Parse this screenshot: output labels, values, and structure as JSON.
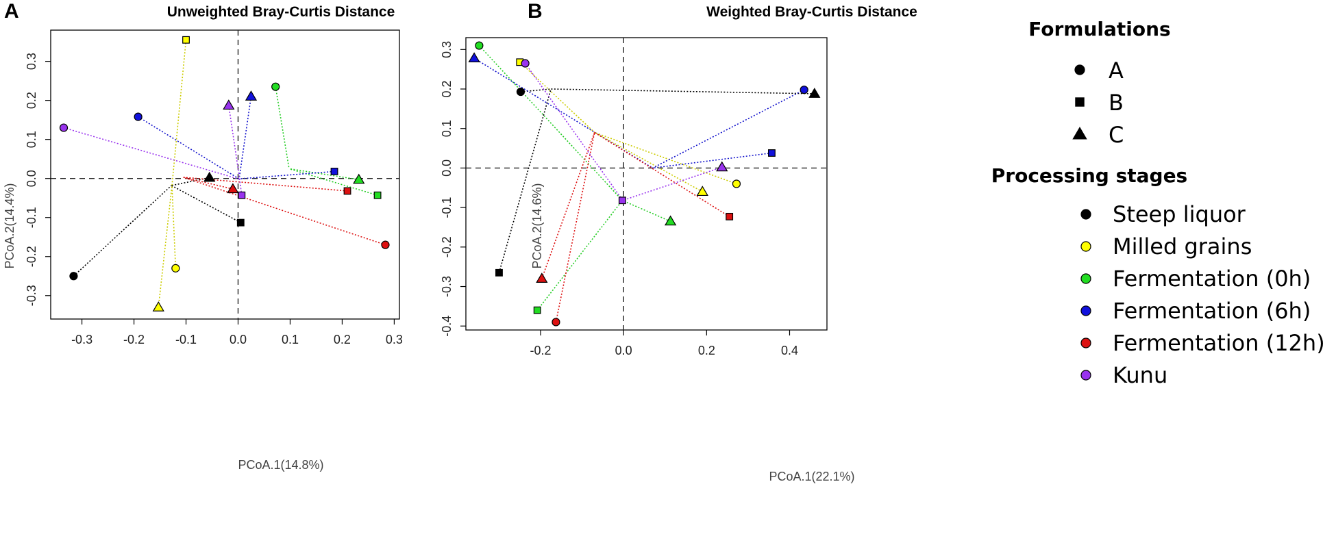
{
  "chart_data": [
    {
      "panel": "A",
      "type": "scatter",
      "title": "Unweighted Bray-Curtis Distance",
      "xlabel": "PCoA.1(14.8%)",
      "ylabel": "PCoA.2(14.4%)",
      "xlim": [
        -0.36,
        0.31
      ],
      "ylim": [
        -0.36,
        0.38
      ],
      "xticks": [
        -0.3,
        -0.2,
        -0.1,
        0.0,
        0.1,
        0.2,
        0.3
      ],
      "xtick_labels": [
        "-0.3",
        "-0.2",
        "-0.1",
        "0.0",
        "0.1",
        "0.2",
        "0.3"
      ],
      "yticks": [
        -0.3,
        -0.2,
        -0.1,
        0.0,
        0.1,
        0.2,
        0.3
      ],
      "ytick_labels": [
        "-0.3",
        "-0.2",
        "-0.1",
        "0.0",
        "0.1",
        "0.2",
        "0.3"
      ],
      "reference_lines": {
        "x": 0,
        "y": 0,
        "style": "dashed"
      },
      "centroids": {
        "Steep liquor": [
          -0.128,
          -0.018
        ],
        "Milled grains": [
          -0.127,
          -0.018
        ],
        "Fermentation (0h)": [
          0.098,
          0.025
        ],
        "Fermentation (6h)": [
          0.002,
          -0.001
        ],
        "Fermentation (12h)": [
          -0.105,
          0.003
        ],
        "Kunu": [
          0.003,
          -0.002
        ]
      },
      "points": [
        {
          "stage": "Steep liquor",
          "formulation": "A",
          "x": -0.316,
          "y": -0.25
        },
        {
          "stage": "Steep liquor",
          "formulation": "B",
          "x": 0.005,
          "y": -0.113
        },
        {
          "stage": "Steep liquor",
          "formulation": "C",
          "x": -0.055,
          "y": 0.002
        },
        {
          "stage": "Milled grains",
          "formulation": "A",
          "x": -0.12,
          "y": -0.23
        },
        {
          "stage": "Milled grains",
          "formulation": "B",
          "x": -0.1,
          "y": 0.355
        },
        {
          "stage": "Milled grains",
          "formulation": "C",
          "x": -0.153,
          "y": -0.33
        },
        {
          "stage": "Fermentation (0h)",
          "formulation": "A",
          "x": 0.072,
          "y": 0.235
        },
        {
          "stage": "Fermentation (0h)",
          "formulation": "B",
          "x": 0.268,
          "y": -0.043
        },
        {
          "stage": "Fermentation (0h)",
          "formulation": "C",
          "x": 0.232,
          "y": -0.003
        },
        {
          "stage": "Fermentation (6h)",
          "formulation": "A",
          "x": -0.192,
          "y": 0.158
        },
        {
          "stage": "Fermentation (6h)",
          "formulation": "B",
          "x": 0.185,
          "y": 0.018
        },
        {
          "stage": "Fermentation (6h)",
          "formulation": "C",
          "x": 0.025,
          "y": 0.21
        },
        {
          "stage": "Fermentation (12h)",
          "formulation": "A",
          "x": 0.283,
          "y": -0.17
        },
        {
          "stage": "Fermentation (12h)",
          "formulation": "B",
          "x": 0.21,
          "y": -0.032
        },
        {
          "stage": "Fermentation (12h)",
          "formulation": "C",
          "x": -0.01,
          "y": -0.027
        },
        {
          "stage": "Kunu",
          "formulation": "A",
          "x": -0.335,
          "y": 0.13
        },
        {
          "stage": "Kunu",
          "formulation": "B",
          "x": 0.007,
          "y": -0.043
        },
        {
          "stage": "Kunu",
          "formulation": "C",
          "x": -0.018,
          "y": 0.187
        }
      ]
    },
    {
      "panel": "B",
      "type": "scatter",
      "title": "Weighted Bray-Curtis Distance",
      "xlabel": "PCoA.1(22.1%)",
      "ylabel": "PCoA.2(14.6%)",
      "xlim": [
        -0.38,
        0.49
      ],
      "ylim": [
        -0.41,
        0.33
      ],
      "xticks": [
        -0.2,
        0.0,
        0.2,
        0.4
      ],
      "xtick_labels": [
        "-0.2",
        "0.0",
        "0.2",
        "0.4"
      ],
      "yticks": [
        -0.4,
        -0.3,
        -0.2,
        -0.1,
        0.0,
        0.1,
        0.2,
        0.3
      ],
      "ytick_labels": [
        "-0.4",
        "-0.3",
        "-0.2",
        "-0.1",
        "0.0",
        "0.1",
        "0.2",
        "0.3"
      ],
      "reference_lines": {
        "x": 0,
        "y": 0,
        "style": "dashed"
      },
      "centroids": {
        "Steep liquor": [
          -0.175,
          0.2
        ],
        "Milled grains": [
          -0.07,
          0.09
        ],
        "Fermentation (0h)": [
          -0.003,
          -0.082
        ],
        "Fermentation (6h)": [
          0.07,
          0.0
        ],
        "Fermentation (12h)": [
          -0.07,
          0.09
        ],
        "Kunu": [
          -0.002,
          -0.082
        ]
      },
      "points": [
        {
          "stage": "Steep liquor",
          "formulation": "A",
          "x": -0.248,
          "y": 0.193
        },
        {
          "stage": "Steep liquor",
          "formulation": "B",
          "x": -0.3,
          "y": -0.265
        },
        {
          "stage": "Steep liquor",
          "formulation": "C",
          "x": 0.46,
          "y": 0.188
        },
        {
          "stage": "Milled grains",
          "formulation": "A",
          "x": 0.272,
          "y": -0.04
        },
        {
          "stage": "Milled grains",
          "formulation": "B",
          "x": -0.25,
          "y": 0.268
        },
        {
          "stage": "Milled grains",
          "formulation": "C",
          "x": 0.19,
          "y": -0.06
        },
        {
          "stage": "Fermentation (0h)",
          "formulation": "A",
          "x": -0.348,
          "y": 0.31
        },
        {
          "stage": "Fermentation (0h)",
          "formulation": "B",
          "x": -0.208,
          "y": -0.36
        },
        {
          "stage": "Fermentation (0h)",
          "formulation": "C",
          "x": 0.113,
          "y": -0.135
        },
        {
          "stage": "Fermentation (6h)",
          "formulation": "A",
          "x": 0.435,
          "y": 0.198
        },
        {
          "stage": "Fermentation (6h)",
          "formulation": "B",
          "x": 0.357,
          "y": 0.038
        },
        {
          "stage": "Fermentation (6h)",
          "formulation": "C",
          "x": -0.36,
          "y": 0.278
        },
        {
          "stage": "Fermentation (12h)",
          "formulation": "A",
          "x": -0.163,
          "y": -0.39
        },
        {
          "stage": "Fermentation (12h)",
          "formulation": "B",
          "x": 0.255,
          "y": -0.123
        },
        {
          "stage": "Fermentation (12h)",
          "formulation": "C",
          "x": -0.197,
          "y": -0.28
        },
        {
          "stage": "Kunu",
          "formulation": "A",
          "x": -0.237,
          "y": 0.265
        },
        {
          "stage": "Kunu",
          "formulation": "B",
          "x": -0.003,
          "y": -0.082
        },
        {
          "stage": "Kunu",
          "formulation": "C",
          "x": 0.237,
          "y": 0.002
        }
      ]
    }
  ],
  "legend": {
    "formulations_title": "Formulations",
    "formulations": [
      {
        "label": "A",
        "shape": "circle"
      },
      {
        "label": "B",
        "shape": "square"
      },
      {
        "label": "C",
        "shape": "triangle"
      }
    ],
    "stages_title": "Processing stages",
    "stages": [
      {
        "label": "Steep liquor",
        "color": "#000000",
        "line_color": "#000000"
      },
      {
        "label": "Milled grains",
        "color": "#ffff00",
        "line_color": "#cccc00"
      },
      {
        "label": "Fermentation (0h)",
        "color": "#22dd22",
        "line_color": "#22cc22"
      },
      {
        "label": "Fermentation (6h)",
        "color": "#1111dd",
        "line_color": "#1111cc"
      },
      {
        "label": "Fermentation (12h)",
        "color": "#dd1111",
        "line_color": "#dd1111"
      },
      {
        "label": "Kunu",
        "color": "#9933ee",
        "line_color": "#9933ee"
      }
    ]
  }
}
